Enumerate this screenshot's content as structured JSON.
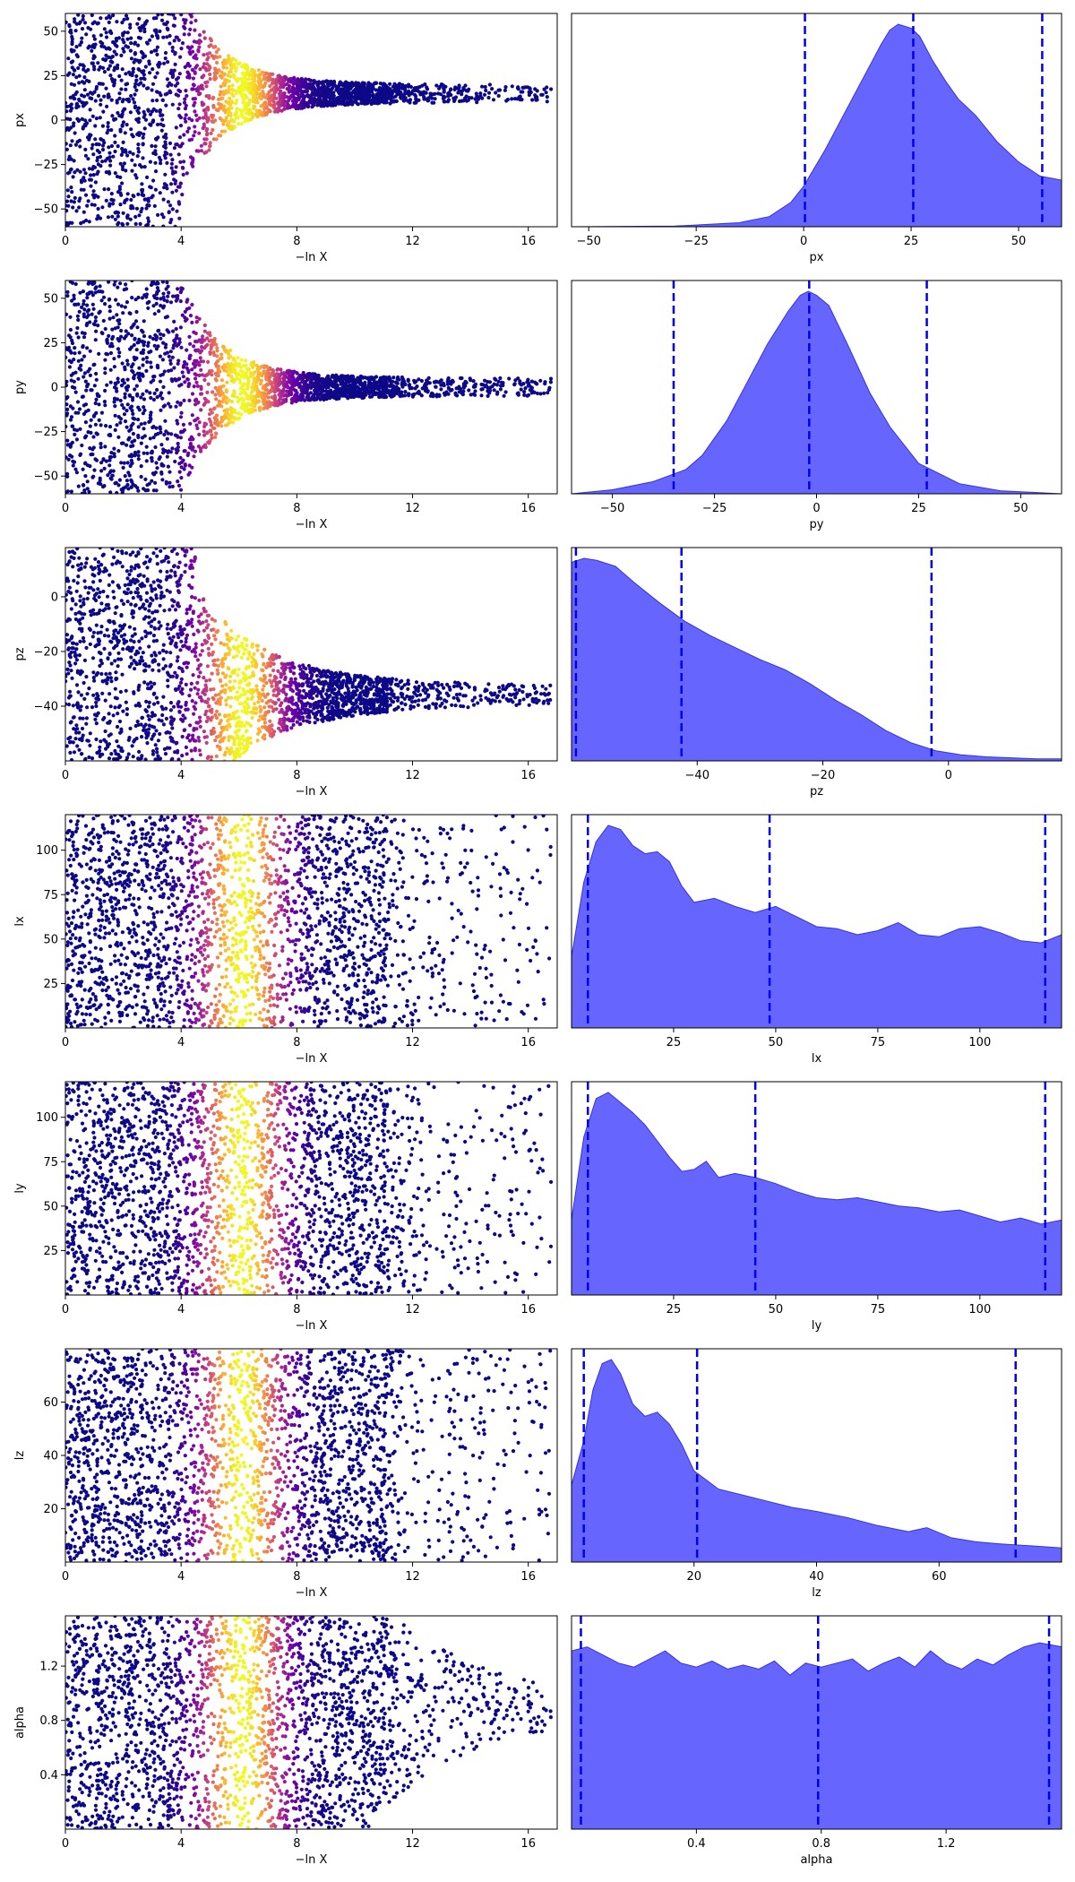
{
  "chart_data": [
    {
      "type": "scatter",
      "ylabel": "px",
      "xlabel": "−ln X",
      "xlim": [
        0,
        17
      ],
      "ylim": [
        -60,
        60
      ],
      "xticks": [
        "0",
        "4",
        "8",
        "12",
        "16"
      ],
      "xtick_values": [
        0,
        4,
        8,
        12,
        16
      ],
      "yticks": [
        "−50",
        "−25",
        "0",
        "25",
        "50"
      ],
      "ytick_values": [
        -50,
        -25,
        0,
        25,
        50
      ],
      "colormap": [
        "#0d0887",
        "#6a00a8",
        "#b12a90",
        "#e16462",
        "#fca636",
        "#f0f921"
      ],
      "color_peak_x": 6.1,
      "funnel": {
        "center": 15,
        "narrow_halfwidth": 6,
        "start": 4.0
      },
      "n_points": 2400
    },
    {
      "type": "area",
      "xlabel": "px",
      "xlim": [
        -54,
        60
      ],
      "xticks": [
        "−50",
        "−25",
        "0",
        "25",
        "50"
      ],
      "xtick_values": [
        -50,
        -25,
        0,
        25,
        50
      ],
      "x": [
        -54,
        -30,
        -15,
        -8,
        -3,
        0,
        5,
        10,
        15,
        18,
        20,
        22,
        25,
        27,
        30,
        33,
        36,
        40,
        45,
        50,
        55,
        60
      ],
      "density": [
        0.0,
        0.003,
        0.02,
        0.05,
        0.12,
        0.2,
        0.38,
        0.58,
        0.78,
        0.9,
        0.97,
        1.0,
        0.98,
        0.94,
        0.82,
        0.72,
        0.63,
        0.55,
        0.42,
        0.32,
        0.25,
        0.23
      ],
      "quantiles": [
        0.3,
        25.5,
        55.5
      ],
      "fill": "#6666ff",
      "edge": "#3333dd",
      "line_color": "#0000ee"
    },
    {
      "type": "scatter",
      "ylabel": "py",
      "xlabel": "−ln X",
      "xlim": [
        0,
        17
      ],
      "ylim": [
        -60,
        60
      ],
      "xticks": [
        "0",
        "4",
        "8",
        "12",
        "16"
      ],
      "xtick_values": [
        0,
        4,
        8,
        12,
        16
      ],
      "yticks": [
        "−50",
        "−25",
        "0",
        "25",
        "50"
      ],
      "ytick_values": [
        -50,
        -25,
        0,
        25,
        50
      ],
      "colormap": [
        "#0d0887",
        "#6a00a8",
        "#b12a90",
        "#e16462",
        "#fca636",
        "#f0f921"
      ],
      "color_peak_x": 6.1,
      "funnel": {
        "center": 0,
        "narrow_halfwidth": 6,
        "start": 4.0
      },
      "n_points": 2400
    },
    {
      "type": "area",
      "xlabel": "py",
      "xlim": [
        -60,
        60
      ],
      "xticks": [
        "−50",
        "−25",
        "0",
        "25",
        "50"
      ],
      "xtick_values": [
        -50,
        -25,
        0,
        25,
        50
      ],
      "x": [
        -60,
        -50,
        -40,
        -32,
        -28,
        -22,
        -17,
        -12,
        -7,
        -4,
        -2,
        0,
        3,
        8,
        13,
        18,
        25,
        35,
        45,
        60
      ],
      "density": [
        0.0,
        0.02,
        0.06,
        0.12,
        0.19,
        0.36,
        0.55,
        0.74,
        0.9,
        0.98,
        1.0,
        0.98,
        0.93,
        0.72,
        0.5,
        0.33,
        0.15,
        0.05,
        0.015,
        0.0
      ],
      "quantiles": [
        -35.0,
        -1.8,
        27.0
      ],
      "fill": "#6666ff",
      "edge": "#3333dd",
      "line_color": "#0000ee"
    },
    {
      "type": "scatter",
      "ylabel": "pz",
      "xlabel": "−ln X",
      "xlim": [
        0,
        17
      ],
      "ylim": [
        -60,
        18
      ],
      "xticks": [
        "0",
        "4",
        "8",
        "12",
        "16"
      ],
      "xtick_values": [
        0,
        4,
        8,
        12,
        16
      ],
      "yticks": [
        "−40",
        "−20",
        "0"
      ],
      "ytick_values": [
        -40,
        -20,
        0
      ],
      "colormap": [
        "#0d0887",
        "#6a00a8",
        "#b12a90",
        "#e16462",
        "#fca636",
        "#f0f921"
      ],
      "color_peak_x": 6.1,
      "funnel": {
        "center": -36,
        "narrow_halfwidth": 20,
        "start": 4.5
      },
      "n_points": 2400
    },
    {
      "type": "area",
      "xlabel": "pz",
      "xlim": [
        -60,
        18
      ],
      "xticks": [
        "−40",
        "−20",
        "0"
      ],
      "xtick_values": [
        -40,
        -20,
        0
      ],
      "x": [
        -60,
        -58,
        -56,
        -53,
        -50,
        -46,
        -42,
        -38,
        -34,
        -30,
        -26,
        -22,
        -18,
        -14,
        -10,
        -6,
        -2,
        2,
        6,
        10,
        14,
        18
      ],
      "density": [
        0.98,
        1.0,
        0.99,
        0.96,
        0.88,
        0.78,
        0.69,
        0.62,
        0.56,
        0.5,
        0.45,
        0.38,
        0.3,
        0.23,
        0.15,
        0.09,
        0.05,
        0.03,
        0.02,
        0.015,
        0.01,
        0.01
      ],
      "quantiles": [
        -59.3,
        -42.5,
        -2.7
      ],
      "fill": "#6666ff",
      "edge": "#3333dd",
      "line_color": "#0000ee"
    },
    {
      "type": "scatter",
      "ylabel": "lx",
      "xlabel": "−ln X",
      "xlim": [
        0,
        17
      ],
      "ylim": [
        0,
        120
      ],
      "xticks": [
        "0",
        "4",
        "8",
        "12",
        "16"
      ],
      "xtick_values": [
        0,
        4,
        8,
        12,
        16
      ],
      "yticks": [
        "25",
        "50",
        "75",
        "100"
      ],
      "ytick_values": [
        25,
        50,
        75,
        100
      ],
      "colormap": [
        "#0d0887",
        "#6a00a8",
        "#b12a90",
        "#e16462",
        "#fca636",
        "#f0f921"
      ],
      "color_peak_x": 6.1,
      "funnel": {
        "center": 60,
        "narrow_halfwidth": 60,
        "start": 20
      },
      "n_points": 2400
    },
    {
      "type": "area",
      "xlabel": "lx",
      "xlim": [
        0,
        120
      ],
      "xticks": [
        "25",
        "50",
        "75",
        "100"
      ],
      "xtick_values": [
        25,
        50,
        75,
        100
      ],
      "x": [
        0,
        3,
        6,
        9,
        12,
        15,
        18,
        21,
        24,
        27,
        30,
        35,
        40,
        45,
        50,
        55,
        60,
        65,
        70,
        75,
        80,
        85,
        90,
        95,
        100,
        105,
        110,
        115,
        120
      ],
      "density": [
        0.35,
        0.72,
        0.92,
        1.0,
        0.98,
        0.9,
        0.86,
        0.87,
        0.82,
        0.7,
        0.62,
        0.64,
        0.6,
        0.57,
        0.6,
        0.55,
        0.5,
        0.49,
        0.46,
        0.48,
        0.52,
        0.46,
        0.45,
        0.49,
        0.5,
        0.47,
        0.43,
        0.42,
        0.46
      ],
      "quantiles": [
        4.0,
        48.5,
        116.0
      ],
      "fill": "#6666ff",
      "edge": "#3333dd",
      "line_color": "#0000ee"
    },
    {
      "type": "scatter",
      "ylabel": "ly",
      "xlabel": "−ln X",
      "xlim": [
        0,
        17
      ],
      "ylim": [
        0,
        120
      ],
      "xticks": [
        "0",
        "4",
        "8",
        "12",
        "16"
      ],
      "xtick_values": [
        0,
        4,
        8,
        12,
        16
      ],
      "yticks": [
        "25",
        "50",
        "75",
        "100"
      ],
      "ytick_values": [
        25,
        50,
        75,
        100
      ],
      "colormap": [
        "#0d0887",
        "#6a00a8",
        "#b12a90",
        "#e16462",
        "#fca636",
        "#f0f921"
      ],
      "color_peak_x": 6.1,
      "funnel": {
        "center": 60,
        "narrow_halfwidth": 60,
        "start": 20
      },
      "n_points": 2400
    },
    {
      "type": "area",
      "xlabel": "ly",
      "xlim": [
        0,
        120
      ],
      "xticks": [
        "25",
        "50",
        "75",
        "100"
      ],
      "xtick_values": [
        25,
        50,
        75,
        100
      ],
      "x": [
        0,
        3,
        6,
        9,
        12,
        15,
        18,
        21,
        24,
        27,
        30,
        33,
        36,
        40,
        45,
        50,
        55,
        60,
        65,
        70,
        75,
        80,
        85,
        90,
        95,
        100,
        105,
        110,
        115,
        120
      ],
      "density": [
        0.37,
        0.78,
        0.97,
        1.0,
        0.95,
        0.9,
        0.84,
        0.76,
        0.68,
        0.61,
        0.62,
        0.66,
        0.58,
        0.6,
        0.58,
        0.55,
        0.51,
        0.48,
        0.47,
        0.48,
        0.46,
        0.44,
        0.43,
        0.41,
        0.42,
        0.39,
        0.36,
        0.38,
        0.35,
        0.37
      ],
      "quantiles": [
        4.0,
        45.0,
        116.0
      ],
      "fill": "#6666ff",
      "edge": "#3333dd",
      "line_color": "#0000ee"
    },
    {
      "type": "scatter",
      "ylabel": "lz",
      "xlabel": "−ln X",
      "xlim": [
        0,
        17
      ],
      "ylim": [
        0,
        80
      ],
      "xticks": [
        "0",
        "4",
        "8",
        "12",
        "16"
      ],
      "xtick_values": [
        0,
        4,
        8,
        12,
        16
      ],
      "yticks": [
        "20",
        "40",
        "60"
      ],
      "ytick_values": [
        20,
        40,
        60
      ],
      "colormap": [
        "#0d0887",
        "#6a00a8",
        "#b12a90",
        "#e16462",
        "#fca636",
        "#f0f921"
      ],
      "color_peak_x": 6.1,
      "funnel": {
        "center": 40,
        "narrow_halfwidth": 40,
        "start": 20
      },
      "n_points": 2400
    },
    {
      "type": "area",
      "xlabel": "lz",
      "xlim": [
        0,
        80
      ],
      "xticks": [
        "20",
        "40",
        "60"
      ],
      "xtick_values": [
        20,
        40,
        60
      ],
      "x": [
        0,
        2,
        3.5,
        5,
        6.5,
        8,
        10,
        12,
        14,
        16,
        18,
        20,
        24,
        28,
        32,
        36,
        40,
        45,
        50,
        55,
        58,
        62,
        66,
        70,
        75,
        80
      ],
      "density": [
        0.38,
        0.6,
        0.85,
        0.98,
        1.0,
        0.93,
        0.78,
        0.72,
        0.74,
        0.68,
        0.58,
        0.45,
        0.36,
        0.33,
        0.3,
        0.27,
        0.25,
        0.22,
        0.18,
        0.15,
        0.17,
        0.12,
        0.1,
        0.09,
        0.08,
        0.07
      ],
      "quantiles": [
        2.0,
        20.5,
        72.5
      ],
      "fill": "#6666ff",
      "edge": "#3333dd",
      "line_color": "#0000ee"
    },
    {
      "type": "scatter",
      "ylabel": "alpha",
      "xlabel": "−ln X",
      "xlim": [
        0,
        17
      ],
      "ylim": [
        0,
        1.57
      ],
      "xticks": [
        "0",
        "4",
        "8",
        "12",
        "16"
      ],
      "xtick_values": [
        0,
        4,
        8,
        12,
        16
      ],
      "yticks": [
        "0.4",
        "0.8",
        "1.2"
      ],
      "ytick_values": [
        0.4,
        0.8,
        1.2
      ],
      "colormap": [
        "#0d0887",
        "#6a00a8",
        "#b12a90",
        "#e16462",
        "#fca636",
        "#f0f921"
      ],
      "color_peak_x": 6.1,
      "funnel": {
        "center": 0.9,
        "narrow_halfwidth": 0.65,
        "start": 10.5
      },
      "n_points": 2400
    },
    {
      "type": "area",
      "xlabel": "alpha",
      "xlim": [
        0,
        1.57
      ],
      "xticks": [
        "0.4",
        "0.8",
        "1.2"
      ],
      "xtick_values": [
        0.4,
        0.8,
        1.2
      ],
      "x": [
        0,
        0.05,
        0.1,
        0.15,
        0.2,
        0.25,
        0.3,
        0.35,
        0.4,
        0.45,
        0.5,
        0.55,
        0.6,
        0.65,
        0.7,
        0.75,
        0.8,
        0.85,
        0.9,
        0.95,
        1.0,
        1.05,
        1.1,
        1.15,
        1.2,
        1.25,
        1.3,
        1.35,
        1.4,
        1.45,
        1.5,
        1.57
      ],
      "density": [
        0.88,
        0.9,
        0.86,
        0.82,
        0.8,
        0.84,
        0.88,
        0.82,
        0.8,
        0.83,
        0.79,
        0.81,
        0.79,
        0.83,
        0.76,
        0.82,
        0.8,
        0.82,
        0.84,
        0.78,
        0.82,
        0.85,
        0.8,
        0.88,
        0.82,
        0.79,
        0.84,
        0.81,
        0.86,
        0.9,
        0.92,
        0.9
      ],
      "quantiles": [
        0.03,
        0.79,
        1.53
      ],
      "fill": "#6666ff",
      "edge": "#3333dd",
      "line_color": "#0000ee"
    }
  ]
}
